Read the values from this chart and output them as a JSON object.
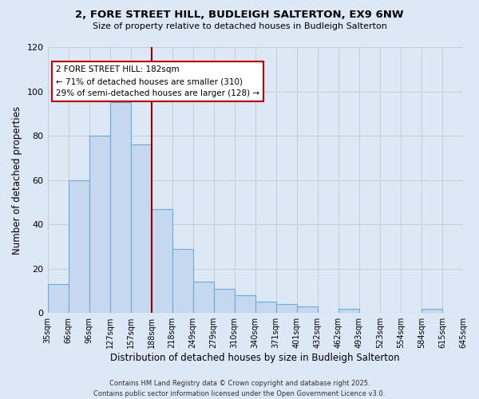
{
  "title": "2, FORE STREET HILL, BUDLEIGH SALTERTON, EX9 6NW",
  "subtitle": "Size of property relative to detached houses in Budleigh Salterton",
  "bar_values": [
    13,
    60,
    80,
    95,
    76,
    47,
    29,
    14,
    11,
    8,
    5,
    4,
    3,
    0,
    2,
    0,
    0,
    0,
    2,
    0
  ],
  "bin_labels": [
    "35sqm",
    "66sqm",
    "96sqm",
    "127sqm",
    "157sqm",
    "188sqm",
    "218sqm",
    "249sqm",
    "279sqm",
    "310sqm",
    "340sqm",
    "371sqm",
    "401sqm",
    "432sqm",
    "462sqm",
    "493sqm",
    "523sqm",
    "554sqm",
    "584sqm",
    "615sqm",
    "645sqm"
  ],
  "bar_color": "#c5d8ef",
  "bar_edge_color": "#6aaed6",
  "vline_color": "#990000",
  "annotation_title": "2 FORE STREET HILL: 182sqm",
  "annotation_line1": "← 71% of detached houses are smaller (310)",
  "annotation_line2": "29% of semi-detached houses are larger (128) →",
  "annotation_box_color": "#ffffff",
  "annotation_box_edge": "#cc0000",
  "xlabel": "Distribution of detached houses by size in Budleigh Salterton",
  "ylabel": "Number of detached properties",
  "ylim": [
    0,
    120
  ],
  "yticks": [
    0,
    20,
    40,
    60,
    80,
    100,
    120
  ],
  "grid_color": "#cccccc",
  "bg_color": "#dce8f5",
  "footer1": "Contains HM Land Registry data © Crown copyright and database right 2025.",
  "footer2": "Contains public sector information licensed under the Open Government Licence v3.0.",
  "n_bins": 20,
  "vline_bin": 5
}
